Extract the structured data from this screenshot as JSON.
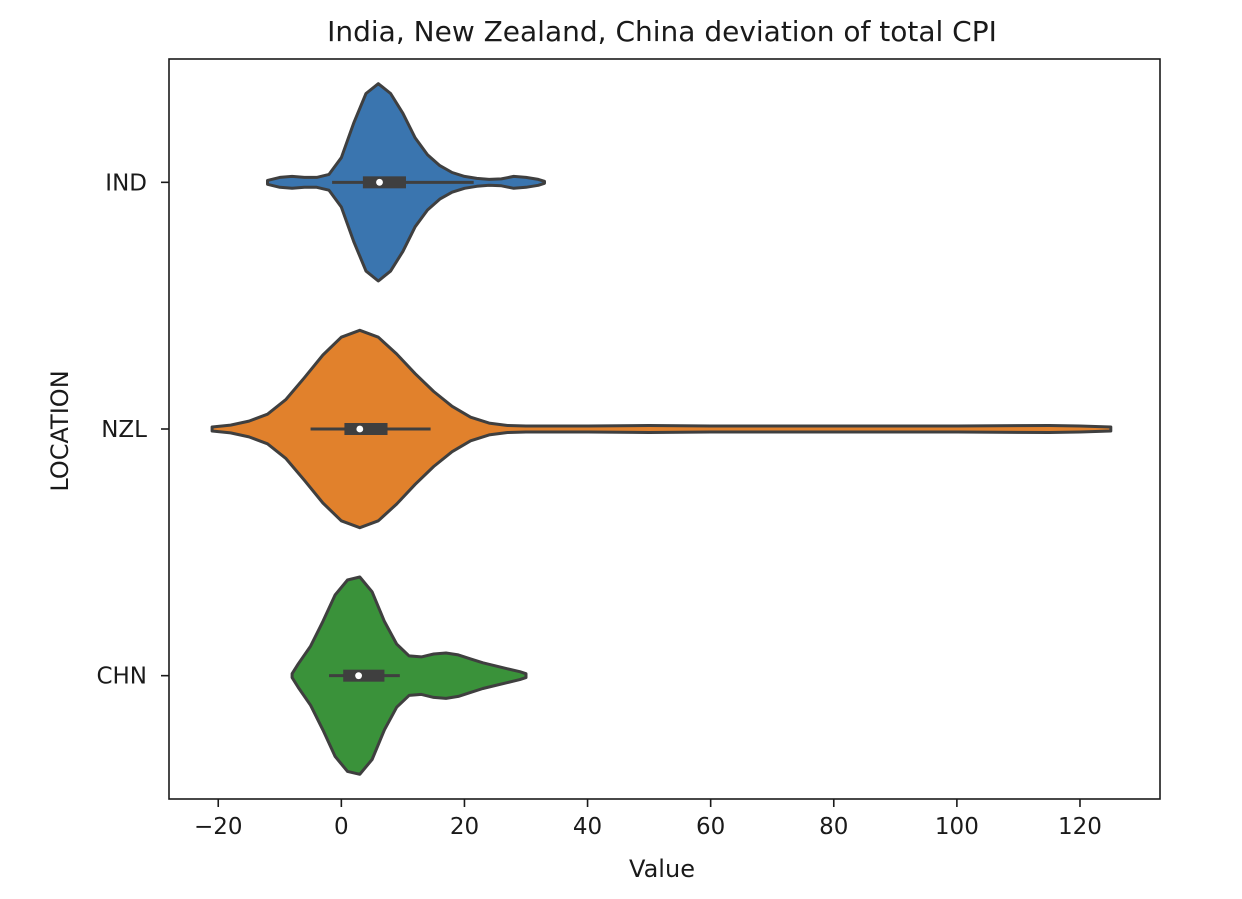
{
  "chart_data": {
    "type": "violin",
    "orientation": "horizontal",
    "title": "India, New Zealand, China deviation of total CPI",
    "xlabel": "Value",
    "ylabel": "LOCATION",
    "xlim": [
      -28,
      133
    ],
    "x_ticks": [
      -20,
      0,
      20,
      40,
      60,
      80,
      100,
      120
    ],
    "x_tick_labels": [
      "−20",
      "0",
      "20",
      "40",
      "60",
      "80",
      "100",
      "120"
    ],
    "grid": false,
    "categories": [
      "IND",
      "NZL",
      "CHN"
    ],
    "series": [
      {
        "name": "IND",
        "color": "#3a75af",
        "min": -12,
        "max": 33,
        "q1": 3.5,
        "median": 6.2,
        "q3": 10.5,
        "whisker_low": -1.5,
        "whisker_high": 21.5,
        "density": [
          [
            -12,
            0.02
          ],
          [
            -10,
            0.05
          ],
          [
            -8,
            0.06
          ],
          [
            -6,
            0.05
          ],
          [
            -4,
            0.05
          ],
          [
            -2,
            0.08
          ],
          [
            0,
            0.25
          ],
          [
            2,
            0.6
          ],
          [
            4,
            0.9
          ],
          [
            6,
            1.0
          ],
          [
            8,
            0.9
          ],
          [
            10,
            0.7
          ],
          [
            12,
            0.45
          ],
          [
            14,
            0.28
          ],
          [
            16,
            0.17
          ],
          [
            18,
            0.1
          ],
          [
            20,
            0.06
          ],
          [
            22,
            0.04
          ],
          [
            24,
            0.03
          ],
          [
            26,
            0.035
          ],
          [
            28,
            0.06
          ],
          [
            30,
            0.05
          ],
          [
            32,
            0.03
          ],
          [
            33,
            0.01
          ]
        ]
      },
      {
        "name": "NZL",
        "color": "#e1812c",
        "min": -21,
        "max": 125,
        "q1": 0.5,
        "median": 3.0,
        "q3": 7.5,
        "whisker_low": -5,
        "whisker_high": 14.5,
        "density": [
          [
            -21,
            0.02
          ],
          [
            -18,
            0.04
          ],
          [
            -15,
            0.08
          ],
          [
            -12,
            0.15
          ],
          [
            -9,
            0.3
          ],
          [
            -6,
            0.52
          ],
          [
            -3,
            0.75
          ],
          [
            0,
            0.93
          ],
          [
            3,
            1.0
          ],
          [
            6,
            0.93
          ],
          [
            9,
            0.76
          ],
          [
            12,
            0.56
          ],
          [
            15,
            0.38
          ],
          [
            18,
            0.23
          ],
          [
            21,
            0.12
          ],
          [
            24,
            0.06
          ],
          [
            27,
            0.035
          ],
          [
            30,
            0.03
          ],
          [
            40,
            0.03
          ],
          [
            50,
            0.035
          ],
          [
            60,
            0.03
          ],
          [
            80,
            0.03
          ],
          [
            100,
            0.03
          ],
          [
            115,
            0.035
          ],
          [
            120,
            0.03
          ],
          [
            125,
            0.02
          ]
        ]
      },
      {
        "name": "CHN",
        "color": "#3a923a",
        "min": -8,
        "max": 30,
        "q1": 0.3,
        "median": 2.8,
        "q3": 7.0,
        "whisker_low": -2,
        "whisker_high": 9.5,
        "density": [
          [
            -8,
            0.02
          ],
          [
            -7,
            0.12
          ],
          [
            -5,
            0.3
          ],
          [
            -3,
            0.55
          ],
          [
            -1,
            0.82
          ],
          [
            1,
            0.97
          ],
          [
            3,
            1.0
          ],
          [
            5,
            0.85
          ],
          [
            7,
            0.55
          ],
          [
            9,
            0.32
          ],
          [
            11,
            0.2
          ],
          [
            13,
            0.19
          ],
          [
            15,
            0.22
          ],
          [
            17,
            0.23
          ],
          [
            19,
            0.21
          ],
          [
            21,
            0.17
          ],
          [
            23,
            0.13
          ],
          [
            25,
            0.1
          ],
          [
            27,
            0.07
          ],
          [
            29,
            0.04
          ],
          [
            30,
            0.02
          ]
        ]
      }
    ]
  }
}
